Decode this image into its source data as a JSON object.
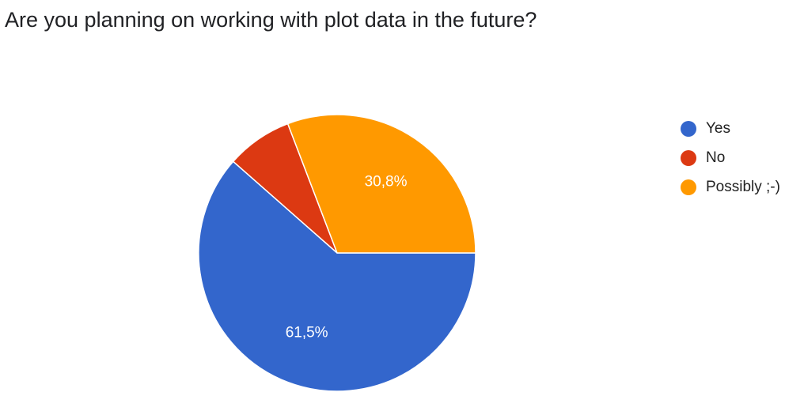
{
  "title": "Are you planning on working with plot data in the future?",
  "chart_data": {
    "type": "pie",
    "title": "Are you planning on working with plot data in the future?",
    "slices": [
      {
        "name": "Yes",
        "value": 61.5,
        "label": "61,5%",
        "color": "#3366cc"
      },
      {
        "name": "No",
        "value": 7.7,
        "label": "",
        "color": "#dc3912"
      },
      {
        "name": "Possibly ;-)",
        "value": 30.8,
        "label": "30,8%",
        "color": "#ff9900"
      }
    ],
    "legend_placement": "right"
  }
}
